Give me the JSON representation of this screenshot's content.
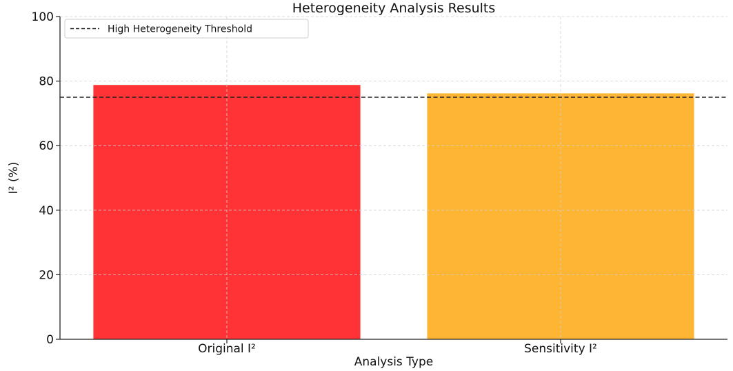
{
  "chart_data": {
    "type": "bar",
    "title": "Heterogeneity Analysis Results",
    "xlabel": "Analysis Type",
    "ylabel": "I² (%)",
    "categories": [
      "Original I²",
      "Sensitivity I²"
    ],
    "values": [
      78.8,
      76.2
    ],
    "bar_colors": [
      "#ff3336",
      "#ffb534"
    ],
    "ylim": [
      0,
      100
    ],
    "yticks": [
      0,
      20,
      40,
      60,
      80,
      100
    ],
    "grid": true,
    "threshold": {
      "value": 75,
      "label": "High Heterogeneity Threshold",
      "color": "#222222"
    },
    "legend_position": "top-left"
  }
}
